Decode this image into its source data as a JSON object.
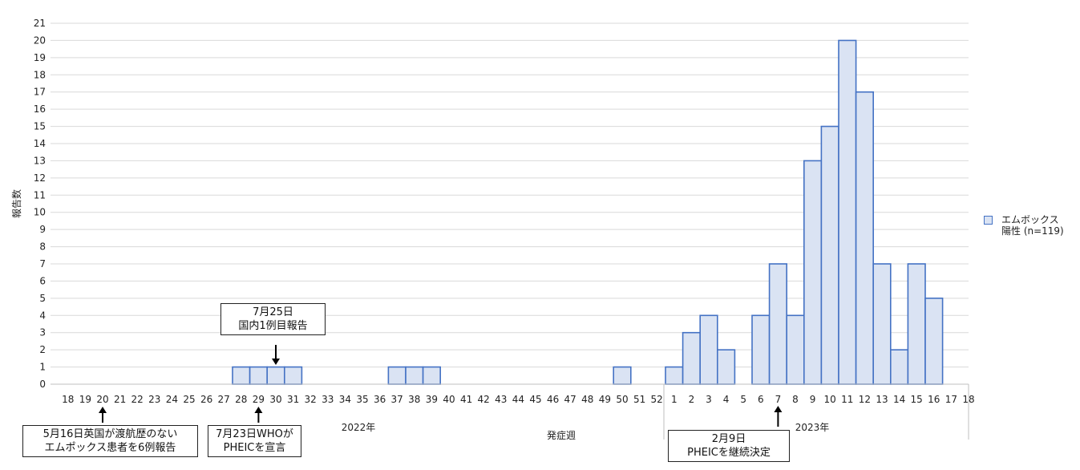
{
  "chart_data": {
    "type": "bar",
    "ylabel": "報告数",
    "xlabel": "発症週",
    "ylim": [
      0,
      21
    ],
    "y_ticks": [
      "0",
      "1",
      "2",
      "3",
      "4",
      "5",
      "6",
      "7",
      "8",
      "9",
      "10",
      "11",
      "12",
      "13",
      "14",
      "15",
      "16",
      "17",
      "18",
      "19",
      "20",
      "21"
    ],
    "grid": true,
    "legend_position": "right",
    "year_labels": [
      "2022年",
      "2023年"
    ],
    "categories": [
      "18",
      "19",
      "20",
      "21",
      "22",
      "23",
      "24",
      "25",
      "26",
      "27",
      "28",
      "29",
      "30",
      "31",
      "32",
      "33",
      "34",
      "35",
      "36",
      "37",
      "38",
      "39",
      "40",
      "41",
      "42",
      "43",
      "44",
      "45",
      "46",
      "47",
      "48",
      "49",
      "50",
      "51",
      "52",
      "1",
      "2",
      "3",
      "4",
      "5",
      "6",
      "7",
      "8",
      "9",
      "10",
      "11",
      "12",
      "13",
      "14",
      "15",
      "16",
      "17",
      "18"
    ],
    "series": [
      {
        "name": "エムボックス陽性 (n=119)",
        "color": "#4472c4",
        "fill": "#dae3f3",
        "values": [
          0,
          0,
          0,
          0,
          0,
          0,
          0,
          0,
          0,
          0,
          1,
          1,
          1,
          1,
          0,
          0,
          0,
          0,
          0,
          1,
          1,
          1,
          0,
          0,
          0,
          0,
          0,
          0,
          0,
          0,
          0,
          0,
          1,
          0,
          0,
          1,
          3,
          4,
          2,
          0,
          4,
          7,
          4,
          13,
          15,
          20,
          17,
          7,
          2,
          7,
          5,
          0,
          0
        ]
      }
    ],
    "annotations": [
      {
        "lines": [
          "7月25日",
          "国内1例目報告"
        ],
        "week_label": "30",
        "year": "2022年",
        "side": "above"
      },
      {
        "lines": [
          "5月16日英国が渡航歴のない",
          "エムポックス患者を6例報告"
        ],
        "week_label": "20",
        "year": "2022年",
        "side": "below"
      },
      {
        "lines": [
          "7月23日WHOが",
          "PHEICを宣言"
        ],
        "week_label": "29",
        "year": "2022年",
        "side": "below"
      },
      {
        "lines": [
          "2月9日",
          "PHEICを継続決定"
        ],
        "week_label": "7",
        "year": "2023年",
        "side": "below"
      }
    ],
    "legend": {
      "lines": [
        "エムボックス",
        "陽性 (n=119)"
      ]
    }
  }
}
